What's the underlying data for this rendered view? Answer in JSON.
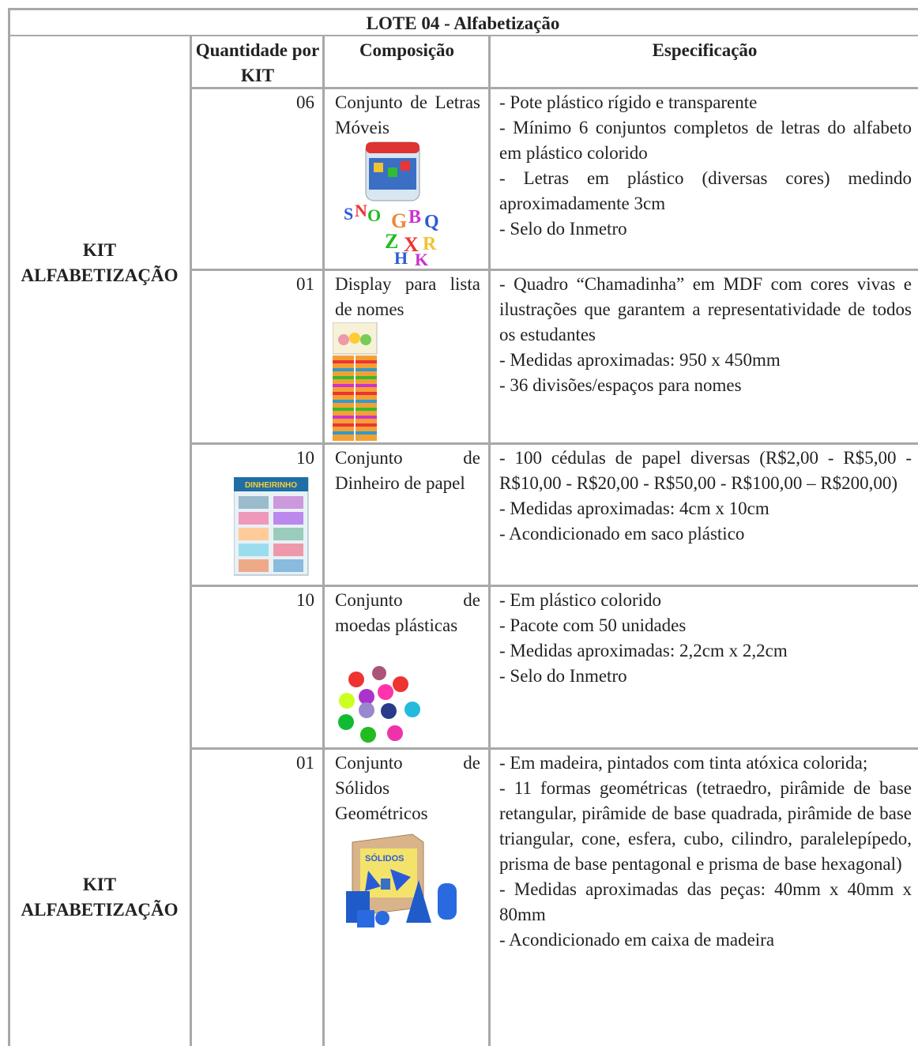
{
  "title": "LOTE 04 - Alfabetização",
  "header": [
    "Quantidade por KIT",
    "Composição",
    "Especificação"
  ],
  "sections": [
    {
      "label": "KIT ALFABETIZAÇÃO",
      "rows": [
        {
          "quantity": "06",
          "composition": "Conjunto de Letras Móveis",
          "specification": [
            "- Pote plástico rígido e transparente",
            "- Mínimo 6 conjuntos completos de letras do alfabeto em plástico colorido",
            "- Letras em plástico (diversas cores) medindo aproximadamente 3cm",
            "- Selo do Inmetro"
          ]
        },
        {
          "quantity": "01",
          "composition": "Display para lista de nomes",
          "specification": [
            "- Quadro “Chamadinha” em MDF com cores vivas e ilustrações que garantem a representatividade de todos os estudantes",
            "- Medidas aproximadas: 950 x 450mm",
            "- 36 divisões/espaços para nomes"
          ]
        },
        {
          "quantity": "10",
          "composition": "Conjunto de Dinheiro de papel",
          "specification": [
            "- 100 cédulas de papel diversas (R$2,00 - R$5,00 - R$10,00 - R$20,00 - R$50,00 - R$100,00 – R$200,00)",
            "- Medidas aproximadas: 4cm x 10cm",
            "- Acondicionado em saco plástico"
          ]
        },
        {
          "quantity": "10",
          "composition": "Conjunto de moedas plásticas",
          "specification": [
            "- Em plástico colorido",
            "- Pacote com 50 unidades",
            "- Medidas aproximadas: 2,2cm x 2,2cm",
            "- Selo do Inmetro"
          ]
        }
      ]
    },
    {
      "label": "KIT ALFABETIZAÇÃO",
      "rows": [
        {
          "quantity": "01",
          "composition": "Conjunto de Sólidos Geométricos",
          "specification": [
            "- Em madeira, pintados com tinta atóxica colorida;",
            "- 11 formas geométricas (tetraedro, pirâmide de base retangular, pirâmide de base quadrada, pirâmide de base triangular, cone, esfera, cubo, cilindro, paralelepípedo, prisma de base pentagonal e prisma de base hexagonal)",
            "- Medidas aproximadas das peças: 40mm x 40mm x 80mm",
            "- Acondicionado em caixa de madeira"
          ]
        }
      ]
    }
  ]
}
